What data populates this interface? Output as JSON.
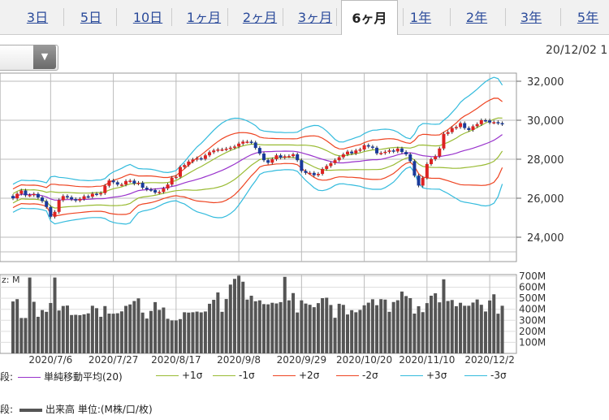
{
  "tabs": [
    {
      "label": "3日",
      "active": false
    },
    {
      "label": "5日",
      "active": false
    },
    {
      "label": "10日",
      "active": false
    },
    {
      "label": "1ヶ月",
      "active": false
    },
    {
      "label": "2ヶ月",
      "active": false
    },
    {
      "label": "3ヶ月",
      "active": false
    },
    {
      "label": "6ヶ月",
      "active": true
    },
    {
      "label": "1年",
      "active": false
    },
    {
      "label": "2年",
      "active": false
    },
    {
      "label": "3年",
      "active": false
    },
    {
      "label": "5年",
      "active": false
    }
  ],
  "dropdown": {
    "arrow": "▼"
  },
  "date_text": "20/12/02 1",
  "volume_label": "z: M",
  "legend1": {
    "prefix": "段:",
    "items": [
      {
        "label": "単純移動平均(20)",
        "color": "#9933cc"
      },
      {
        "label": "+1σ",
        "color": "#99bb33"
      },
      {
        "label": "-1σ",
        "color": "#99bb33"
      },
      {
        "label": "+2σ",
        "color": "#ee4422"
      },
      {
        "label": "-2σ",
        "color": "#ee4422"
      },
      {
        "label": "+3σ",
        "color": "#33bbdd"
      },
      {
        "label": "-3σ",
        "color": "#33bbdd"
      }
    ]
  },
  "legend2": {
    "prefix": "段:",
    "label": "出来高 単位:(M株/口/枚)",
    "color": "#555555"
  },
  "chart_data": [
    {
      "type": "candlestick",
      "y_ticks": [
        "32,000",
        "30,000",
        "28,000",
        "26,000",
        "24,000"
      ],
      "y_tick_values": [
        32000,
        30000,
        28000,
        26000,
        24000
      ],
      "ylim": [
        22500,
        32500
      ],
      "x_labels": [
        "2020/7/6",
        "2020/7/27",
        "2020/8/17",
        "2020/9/8",
        "2020/9/29",
        "2020/10/20",
        "2020/11/10",
        "2020/12/2"
      ],
      "x_label_index": [
        9,
        24,
        39,
        54,
        69,
        84,
        99,
        114
      ],
      "n": 118,
      "close": [
        25995,
        26230,
        26395,
        26150,
        26160,
        26220,
        26040,
        25850,
        25550,
        25050,
        25300,
        25900,
        26110,
        26050,
        25950,
        25880,
        25960,
        26100,
        26080,
        26230,
        26200,
        26260,
        26640,
        26910,
        26820,
        26700,
        26700,
        26880,
        26900,
        26750,
        26790,
        26540,
        26450,
        26420,
        26290,
        26320,
        26500,
        26700,
        27050,
        27100,
        27600,
        27700,
        27880,
        27980,
        28050,
        28020,
        28200,
        28360,
        28450,
        28500,
        28500,
        28540,
        28590,
        28650,
        28800,
        28900,
        28900,
        28860,
        28580,
        28290,
        27950,
        27820,
        28000,
        28200,
        28080,
        28150,
        28160,
        28250,
        27950,
        27400,
        27300,
        27300,
        27180,
        27250,
        27500,
        27650,
        27800,
        27950,
        28100,
        28250,
        28390,
        28300,
        28450,
        28500,
        28720,
        28650,
        28590,
        28300,
        28320,
        28380,
        28450,
        28400,
        28550,
        28370,
        28250,
        27900,
        27160,
        26650,
        27050,
        27750,
        28000,
        28150,
        28550,
        29300,
        29390,
        29600,
        29650,
        29850,
        29600,
        29500,
        29690,
        29800,
        30000,
        29990,
        29880,
        29900,
        29850,
        29800
      ],
      "volume": [
        471,
        492,
        321,
        321,
        688,
        468,
        332,
        393,
        377,
        457,
        688,
        389,
        430,
        434,
        348,
        350,
        347,
        354,
        363,
        432,
        410,
        332,
        429,
        361,
        360,
        364,
        381,
        431,
        444,
        475,
        499,
        370,
        316,
        385,
        465,
        394,
        416,
        314,
        299,
        299,
        311,
        373,
        370,
        373,
        379,
        372,
        380,
        450,
        486,
        553,
        377,
        493,
        624,
        676,
        705,
        650,
        488,
        523,
        473,
        481,
        447,
        445,
        459,
        453,
        465,
        694,
        481,
        547,
        371,
        481,
        452,
        441,
        419,
        456,
        501,
        505,
        439,
        323,
        450,
        440,
        353,
        392,
        373,
        394,
        436,
        460,
        491,
        437,
        492,
        488,
        377,
        466,
        482,
        561,
        520,
        501,
        361,
        428,
        374,
        456,
        523,
        545,
        463,
        672,
        475,
        484,
        428,
        459,
        432,
        432,
        461,
        489,
        441,
        380,
        480,
        536,
        360,
        432
      ],
      "volume_ticks": [
        "700M",
        "600M",
        "500M",
        "400M",
        "300M",
        "200M",
        "100M"
      ],
      "volume_tick_values": [
        700,
        600,
        500,
        400,
        300,
        200,
        100
      ],
      "volume_ylim": [
        0,
        750
      ],
      "series": [
        {
          "name": "単純移動平均(20)",
          "color": "#9933cc"
        },
        {
          "name": "+1σ",
          "color": "#99bb33"
        },
        {
          "name": "-1σ",
          "color": "#99bb33"
        },
        {
          "name": "+2σ",
          "color": "#ee4422"
        },
        {
          "name": "-2σ",
          "color": "#ee4422"
        },
        {
          "name": "+3σ",
          "color": "#33bbdd"
        },
        {
          "name": "-3σ",
          "color": "#33bbdd"
        },
        {
          "name": "出来高",
          "color": "#555555"
        }
      ]
    }
  ]
}
